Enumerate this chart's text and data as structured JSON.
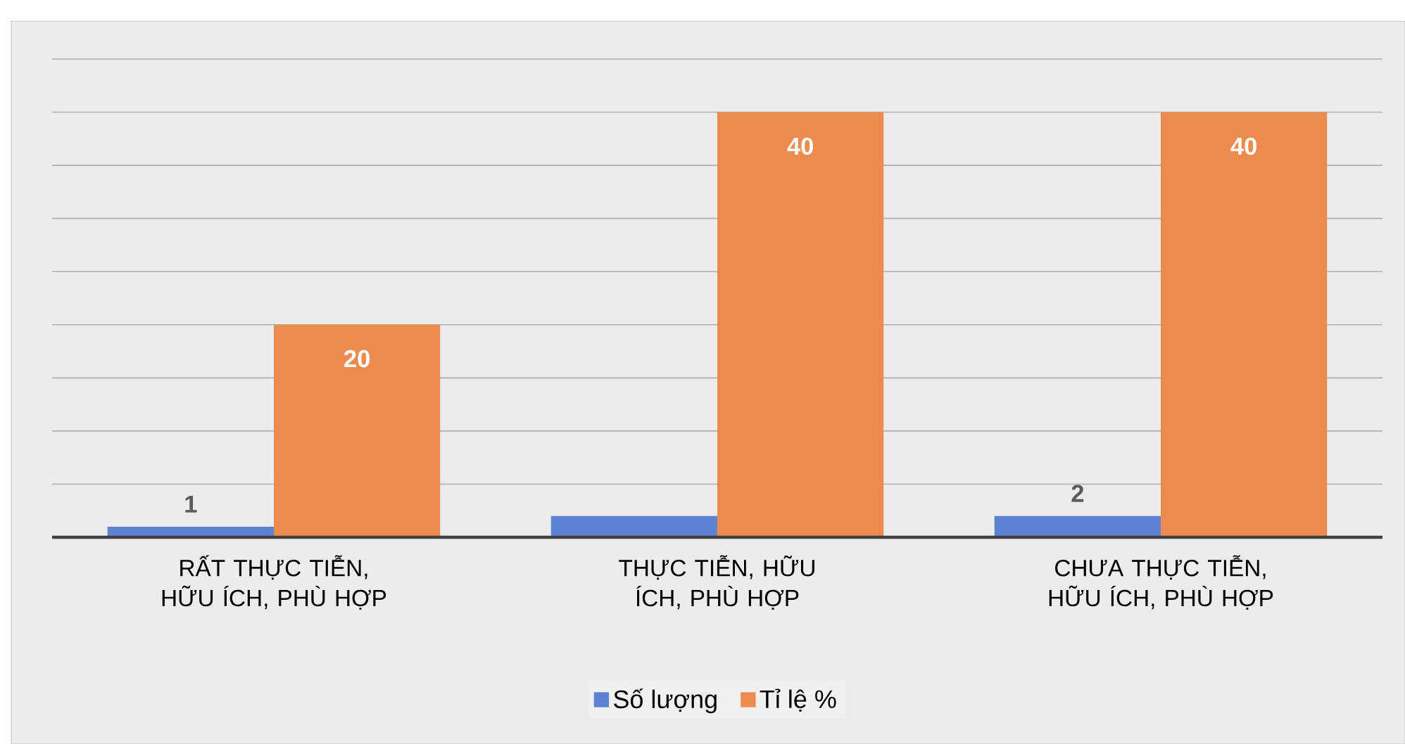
{
  "chart_data": {
    "type": "bar",
    "categories": [
      "RẤT THỰC TIỄN, HỮU ÍCH, PHÙ HỢP",
      "THỰC TIỄN, HỮU ÍCH, PHÙ HỢP",
      "CHƯA THỰC TIỄN, HỮU ÍCH, PHÙ HỢP"
    ],
    "series": [
      {
        "name": "Số lượng",
        "color": "#5b83cf",
        "values": [
          1,
          2,
          2
        ],
        "value_labels": [
          "1",
          null,
          "2"
        ]
      },
      {
        "name": "Tỉ lệ %",
        "color": "#ed8b4e",
        "values": [
          20,
          40,
          40
        ],
        "value_labels": [
          "20",
          "40",
          "40"
        ]
      }
    ],
    "ylim": [
      0,
      45
    ],
    "yticks": [
      {
        "value": 0,
        "label": null
      },
      {
        "value": 5,
        "label": null
      },
      {
        "value": 10,
        "label": null
      },
      {
        "value": 15,
        "label": null
      },
      {
        "value": 20,
        "label": null
      },
      {
        "value": 25,
        "label": null
      },
      {
        "value": 30,
        "label": null
      },
      {
        "value": 35,
        "label": null
      },
      {
        "value": 40,
        "label": null
      },
      {
        "value": 45,
        "label": null
      }
    ],
    "grid": "y",
    "legend": "bottom",
    "tick_labels": "x"
  }
}
